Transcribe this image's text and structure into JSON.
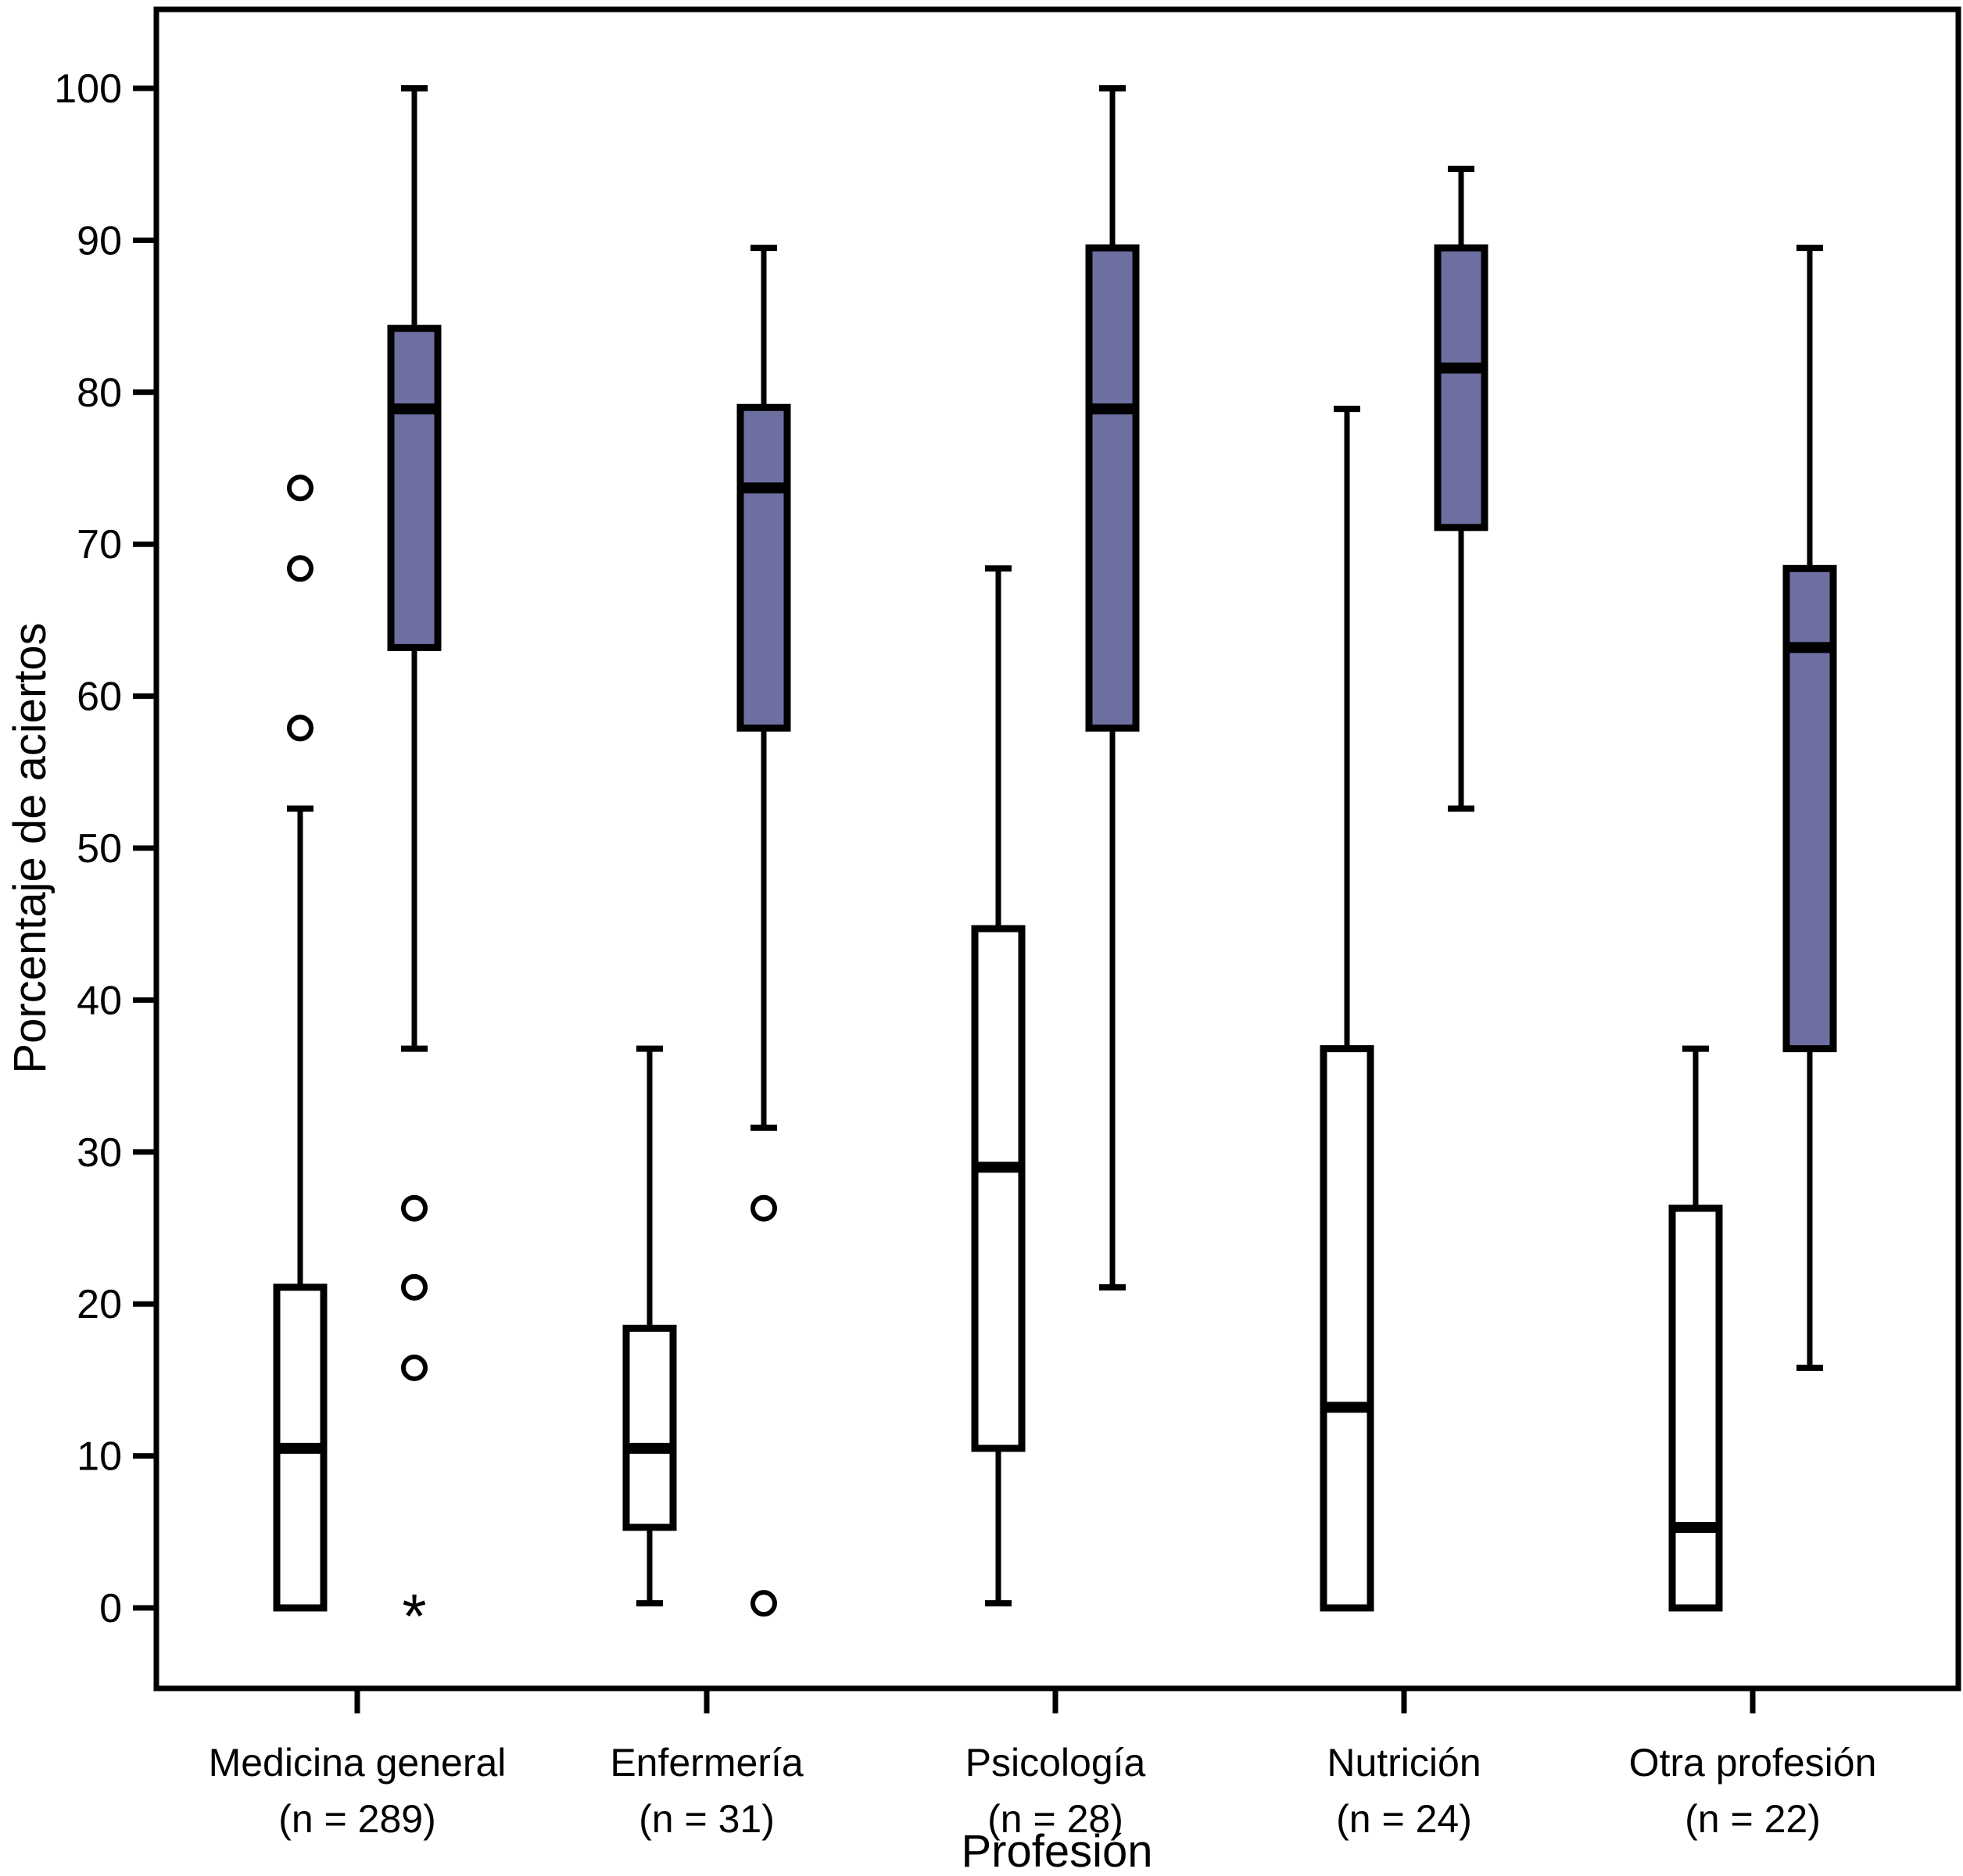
{
  "chart_data": {
    "type": "grouped_boxplot",
    "title": "",
    "xlabel": "Profesión",
    "ylabel": "Porcentaje de aciertos",
    "ylim": [
      0,
      100
    ],
    "yticks": [
      0,
      10,
      20,
      30,
      40,
      50,
      60,
      70,
      80,
      90,
      100
    ],
    "grid": false,
    "legend_position": "none",
    "categories": [
      {
        "label": "Medicina general",
        "n": "(n = 289)"
      },
      {
        "label": "Enfermería",
        "n": "(n = 31)"
      },
      {
        "label": "Psicología",
        "n": "(n = 28)"
      },
      {
        "label": "Nutrición",
        "n": "(n = 24)"
      },
      {
        "label": "Otra profesión",
        "n": "(n = 22)"
      }
    ],
    "series": [
      {
        "name": "caja-blanca",
        "fill": "#ffffff",
        "boxes": [
          {
            "whisker_low": 0,
            "q1": 0,
            "median": 10.5,
            "q3": 21.1,
            "whisker_high": 52.6,
            "outliers": [
              57.9,
              68.4,
              73.7
            ],
            "extremes": []
          },
          {
            "whisker_low": 0.3,
            "q1": 5.3,
            "median": 10.5,
            "q3": 18.4,
            "whisker_high": 36.8,
            "outliers": [],
            "extremes": []
          },
          {
            "whisker_low": 0.3,
            "q1": 10.5,
            "median": 29.0,
            "q3": 44.7,
            "whisker_high": 68.4,
            "outliers": [],
            "extremes": []
          },
          {
            "whisker_low": 0,
            "q1": 0,
            "median": 13.2,
            "q3": 36.8,
            "whisker_high": 78.9,
            "outliers": [],
            "extremes": []
          },
          {
            "whisker_low": 0,
            "q1": 0,
            "median": 5.3,
            "q3": 26.3,
            "whisker_high": 36.8,
            "outliers": [],
            "extremes": []
          }
        ]
      },
      {
        "name": "caja-morada",
        "fill": "#6d6fa0",
        "boxes": [
          {
            "whisker_low": 36.8,
            "q1": 63.2,
            "median": 78.9,
            "q3": 84.2,
            "whisker_high": 100,
            "outliers": [
              26.3,
              21.1,
              15.8
            ],
            "extremes": [
              0
            ]
          },
          {
            "whisker_low": 31.6,
            "q1": 57.9,
            "median": 73.7,
            "q3": 79.0,
            "whisker_high": 89.5,
            "outliers": [
              26.3,
              0.3
            ],
            "extremes": []
          },
          {
            "whisker_low": 21.1,
            "q1": 57.9,
            "median": 78.9,
            "q3": 89.5,
            "whisker_high": 100,
            "outliers": [],
            "extremes": []
          },
          {
            "whisker_low": 52.6,
            "q1": 71.1,
            "median": 81.6,
            "q3": 89.5,
            "whisker_high": 94.7,
            "outliers": [],
            "extremes": []
          },
          {
            "whisker_low": 15.8,
            "q1": 36.8,
            "median": 63.2,
            "q3": 68.4,
            "whisker_high": 89.5,
            "outliers": [],
            "extremes": []
          }
        ]
      }
    ],
    "colors": {
      "box_fill_purple": "#6d6fa0",
      "box_fill_white": "#ffffff",
      "stroke": "#000000",
      "background": "#ffffff"
    }
  }
}
